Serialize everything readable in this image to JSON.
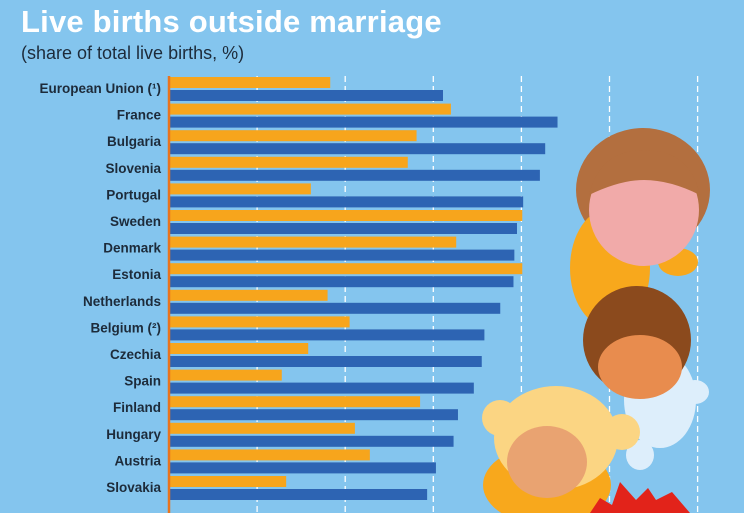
{
  "colors": {
    "background": "#84c5ee",
    "series_2017": "#f7a51c",
    "series_2020": "#2d64b3",
    "axis": "#e8741e",
    "grid": "#ffffff"
  },
  "chart_data": {
    "type": "bar",
    "orientation": "horizontal",
    "title": "Live births outside marriage",
    "subtitle": "(share of total live births, %)",
    "categories": [
      "European Union (¹)",
      "France",
      "Bulgaria",
      "Slovenia",
      "Portugal",
      "Sweden",
      "Denmark",
      "Estonia",
      "Netherlands",
      "Belgium (²)",
      "Czechia",
      "Spain",
      "Finland",
      "Hungary",
      "Austria",
      "Slovakia"
    ],
    "series": [
      {
        "color": "#f7a51c",
        "values": [
          18.3,
          32.0,
          28.1,
          27.1,
          16.1,
          40.1,
          32.6,
          40.1,
          18.0,
          20.5,
          15.8,
          12.8,
          28.5,
          21.1,
          22.8,
          13.3
        ]
      },
      {
        "color": "#2d64b3",
        "values": [
          31.1,
          44.1,
          42.7,
          42.1,
          40.2,
          39.5,
          39.2,
          39.1,
          37.6,
          35.8,
          35.5,
          34.6,
          32.8,
          32.3,
          30.3,
          29.3
        ]
      }
    ],
    "xlim": [
      0,
      70
    ],
    "grid": true,
    "grid_step": 10,
    "legend": "none"
  }
}
